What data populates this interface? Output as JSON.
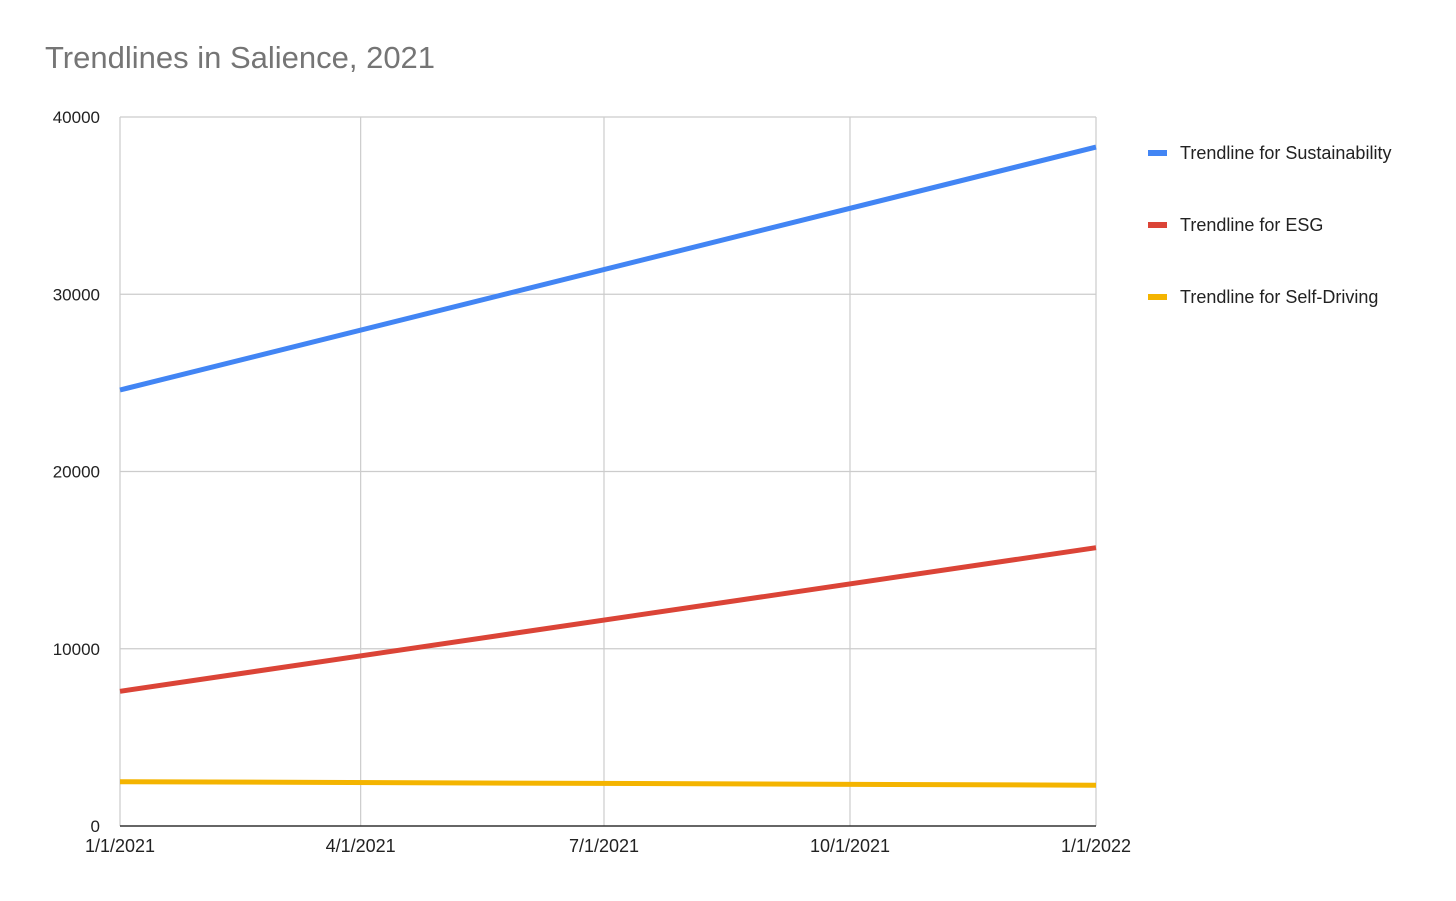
{
  "chart_data": {
    "type": "line",
    "title": "Trendlines in Salience, 2021",
    "xlabel": "",
    "ylabel": "",
    "x_ticks": [
      "1/1/2021",
      "4/1/2021",
      "7/1/2021",
      "10/1/2021",
      "1/1/2022"
    ],
    "x_range": [
      "1/1/2021",
      "1/1/2022"
    ],
    "y_ticks": [
      0,
      10000,
      20000,
      30000,
      40000
    ],
    "ylim": [
      0,
      40000
    ],
    "grid": true,
    "legend_position": "right",
    "series": [
      {
        "name": "Trendline for Sustainability",
        "color": "#4285f4",
        "x": [
          "1/1/2021",
          "1/1/2022"
        ],
        "y": [
          24600,
          38300
        ]
      },
      {
        "name": "Trendline for ESG",
        "color": "#db4437",
        "x": [
          "1/1/2021",
          "1/1/2022"
        ],
        "y": [
          7600,
          15700
        ]
      },
      {
        "name": "Trendline for Self-Driving",
        "color": "#f4b400",
        "x": [
          "1/1/2021",
          "1/1/2022"
        ],
        "y": [
          2500,
          2300
        ]
      }
    ]
  }
}
